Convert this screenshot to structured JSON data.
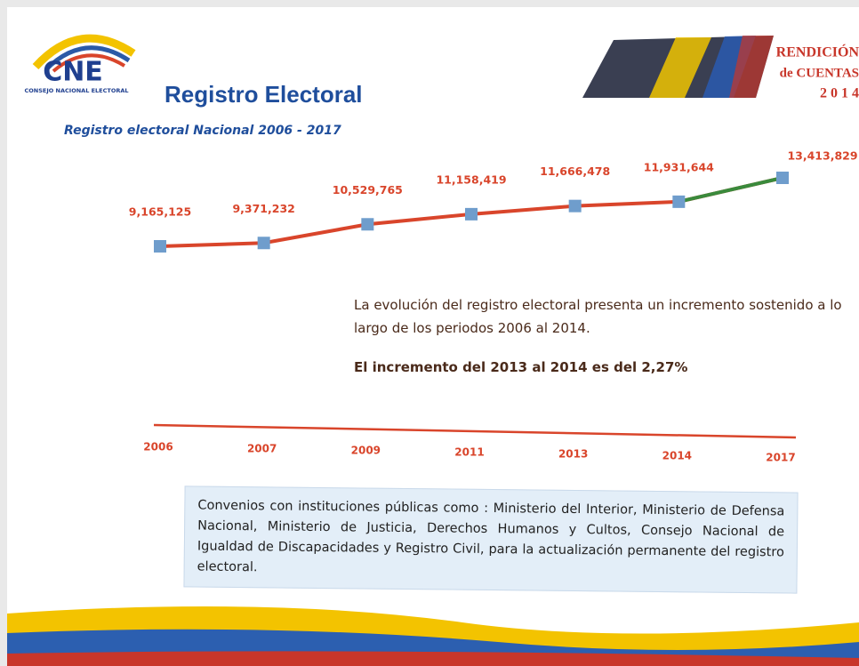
{
  "header": {
    "logo_text": "CNE",
    "logo_subtitle": "CONSEJO NACIONAL ELECTORAL",
    "title": "Registro Electoral",
    "badge": [
      "RENDICIÓN",
      "de CUENTAS",
      "2 0 1 4"
    ]
  },
  "chart_data": {
    "type": "line",
    "title": "Registro electoral Nacional 2006 - 2017",
    "categories": [
      "2006",
      "2007",
      "2009",
      "2011",
      "2013",
      "2014",
      "2017"
    ],
    "values": [
      9165125,
      9371232,
      10529765,
      11158419,
      11666478,
      11931644,
      13413829
    ],
    "value_labels": [
      "9,165,125",
      "9,371,232",
      "10,529,765",
      "11,158,419",
      "11,666,478",
      "11,931,644",
      "13,413,829"
    ],
    "color": "#d9452b",
    "last_segment_color": "#3a8a3c",
    "marker_color": "#6f9dcc",
    "annotations": [
      "La evolución del registro electoral presenta un incremento sostenido a lo largo de los periodos 2006 al 2014.",
      "El incremento del 2013 al 2014 es del 2,27%"
    ]
  },
  "note": "Convenios con instituciones públicas como : Ministerio del Interior, Ministerio de Defensa Nacional, Ministerio de Justicia, Derechos Humanos y Cultos, Consejo Nacional de Igualdad de Discapacidades y Registro Civil, para la actualización permanente del registro electoral."
}
